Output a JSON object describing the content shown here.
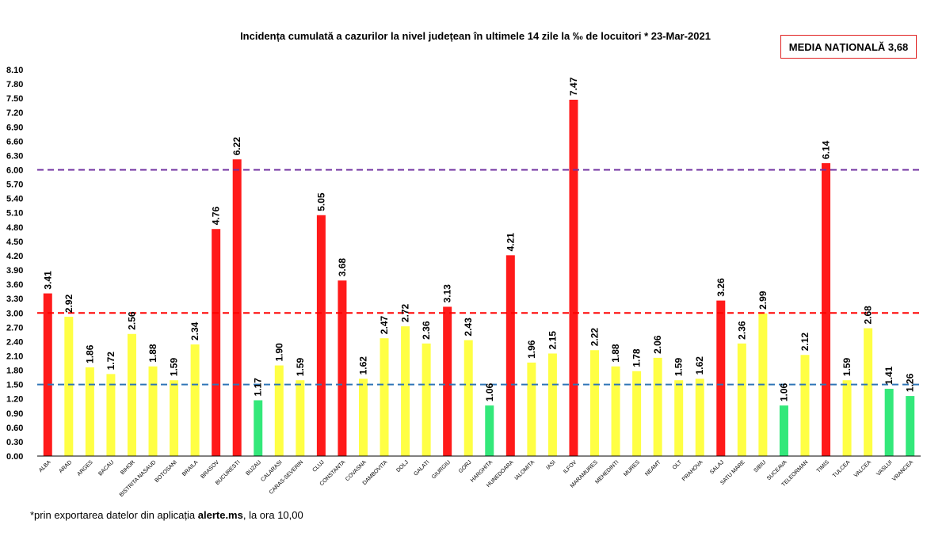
{
  "page": {
    "media_label": "MEDIA NAȚIONALĂ 3,68",
    "footnote_pre": "*prin exportarea datelor din aplicația ",
    "footnote_bold": "alerte.ms",
    "footnote_post": ", la ora 10,00"
  },
  "chart_data": {
    "type": "bar",
    "title": "Incidența cumulată a cazurilor la nivel județean în ultimele 14 zile la ‰ de locuitori * 23-Mar-2021",
    "xlabel": "",
    "ylabel": "",
    "ylim": [
      0,
      8.1
    ],
    "yticks": [
      "0.00",
      "0.30",
      "0.60",
      "0.90",
      "1.20",
      "1.50",
      "1.80",
      "2.10",
      "2.40",
      "2.70",
      "3.00",
      "3.30",
      "3.60",
      "3.90",
      "4.20",
      "4.50",
      "4.80",
      "5.10",
      "5.40",
      "5.70",
      "6.00",
      "6.30",
      "6.60",
      "6.90",
      "7.20",
      "7.50",
      "7.80",
      "8.10"
    ],
    "grid": false,
    "legend": "none",
    "categories": [
      "ALBA",
      "ARAD",
      "ARGES",
      "BACAU",
      "BIHOR",
      "BISTRITA NASAUD",
      "BOTOSANI",
      "BRAILA",
      "BRASOV",
      "BUCURESTI",
      "BUZAU",
      "CALARASI",
      "CARAS-SEVERIN",
      "CLUJ",
      "CONSTANTA",
      "COVASNA",
      "DAMBOVITA",
      "DOLJ",
      "GALATI",
      "GIURGIU",
      "GORJ",
      "HARGHITA",
      "HUNEDOARA",
      "IALOMITA",
      "IASI",
      "ILFOV",
      "MARAMURES",
      "MEHEDINTI",
      "MURES",
      "NEAMT",
      "OLT",
      "PRAHOVA",
      "SALAJ",
      "SATU MARE",
      "SIBIU",
      "SUCEAVA",
      "TELEORMAN",
      "TIMIS",
      "TULCEA",
      "VALCEA",
      "VASLUI",
      "VRANCEA"
    ],
    "values": [
      3.41,
      2.92,
      1.86,
      1.72,
      2.56,
      1.88,
      1.59,
      2.34,
      4.76,
      6.22,
      1.17,
      1.9,
      1.59,
      5.05,
      3.68,
      1.62,
      2.47,
      2.72,
      2.36,
      3.13,
      2.43,
      1.06,
      4.21,
      1.96,
      2.15,
      7.47,
      2.22,
      1.88,
      1.78,
      2.06,
      1.59,
      1.62,
      3.26,
      2.36,
      2.99,
      1.06,
      2.12,
      6.14,
      1.59,
      2.68,
      1.41,
      1.26
    ],
    "value_labels": [
      "3.41",
      "2.92",
      "1.86",
      "1.72",
      "2.56",
      "1.88",
      "1.59",
      "2.34",
      "4.76",
      "6.22",
      "1.17",
      "1.90",
      "1.59",
      "5.05",
      "3.68",
      "1.62",
      "2.47",
      "2.72",
      "2.36",
      "3.13",
      "2.43",
      "1.06",
      "4.21",
      "1.96",
      "2.15",
      "7.47",
      "2.22",
      "1.88",
      "1.78",
      "2.06",
      "1.59",
      "1.62",
      "3.26",
      "2.36",
      "2.99",
      "1.06",
      "2.12",
      "6.14",
      "1.59",
      "2.68",
      "1.41",
      "1.26"
    ],
    "colors": {
      "red": "#ff1a1a",
      "yellow": "#ffff44",
      "green": "#33e87a"
    },
    "bar_colors": [
      "red",
      "yellow",
      "yellow",
      "yellow",
      "yellow",
      "yellow",
      "yellow",
      "yellow",
      "red",
      "red",
      "green",
      "yellow",
      "yellow",
      "red",
      "red",
      "yellow",
      "yellow",
      "yellow",
      "yellow",
      "red",
      "yellow",
      "green",
      "red",
      "yellow",
      "yellow",
      "red",
      "yellow",
      "yellow",
      "yellow",
      "yellow",
      "yellow",
      "yellow",
      "red",
      "yellow",
      "yellow",
      "green",
      "yellow",
      "red",
      "yellow",
      "yellow",
      "green",
      "green"
    ],
    "threshold_lines": [
      {
        "value": 6.0,
        "color": "#7030a0"
      },
      {
        "value": 3.0,
        "color": "#ff0000"
      },
      {
        "value": 1.5,
        "color": "#2e75b6"
      }
    ]
  }
}
